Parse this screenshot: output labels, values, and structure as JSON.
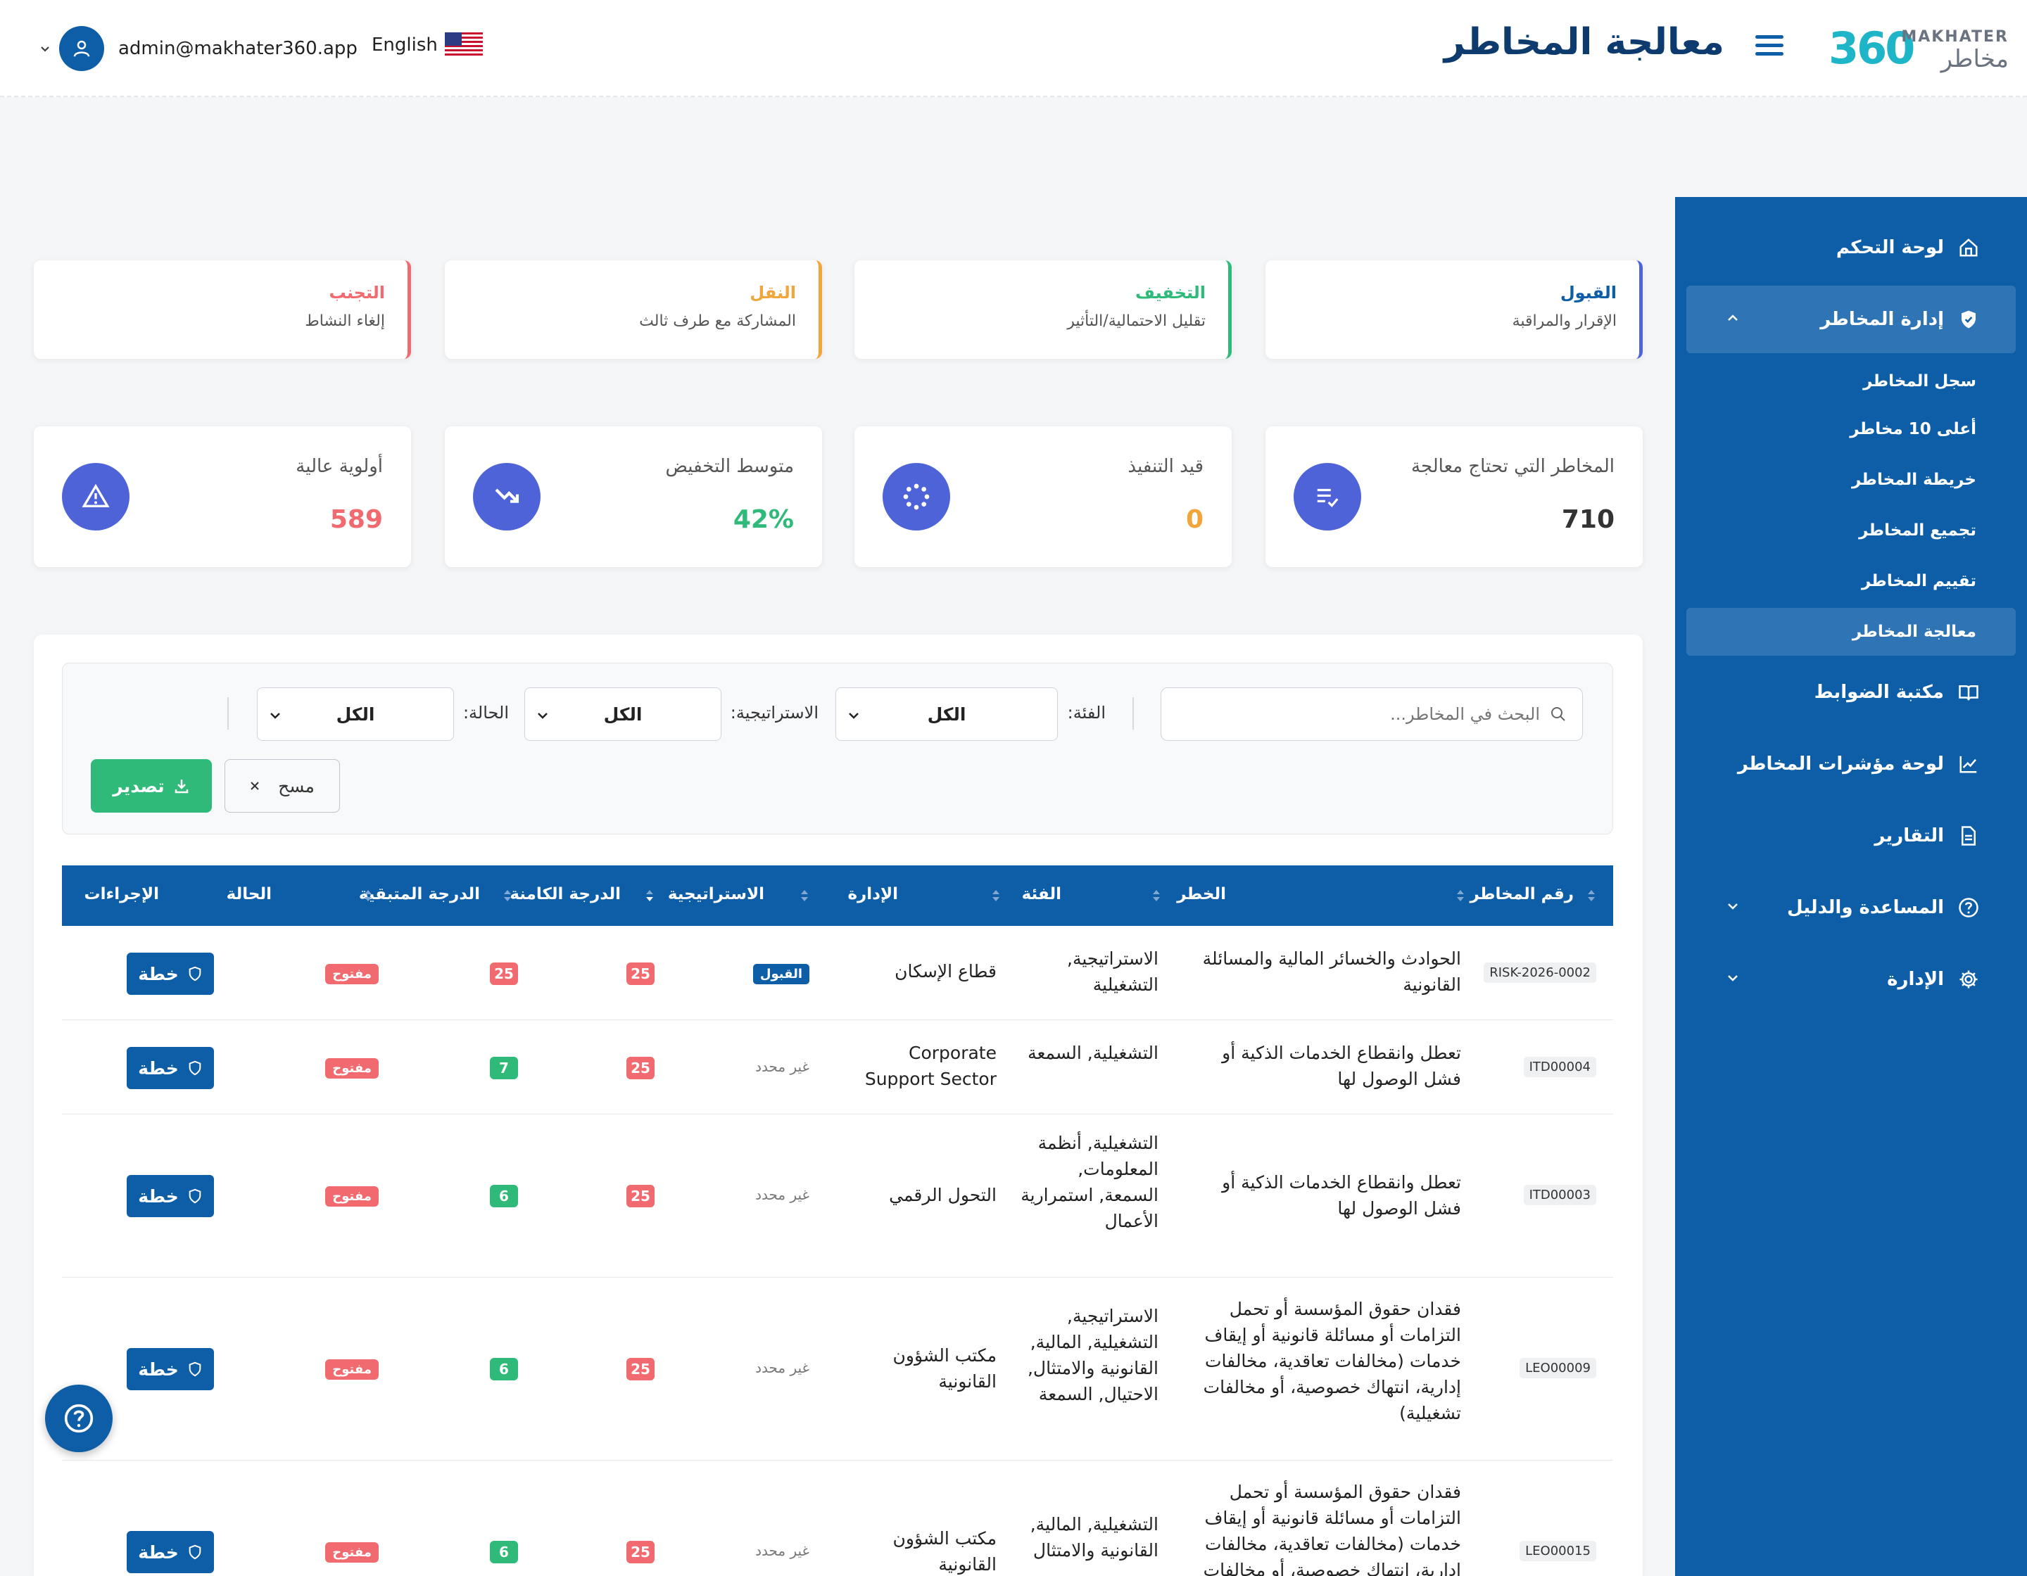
{
  "header": {
    "title": "معالجة المخاطر",
    "logo_number": "360",
    "logo_en": "MAKHATER",
    "logo_ar": "مخاطر",
    "language": "English",
    "user_email": "admin@makhater360.app"
  },
  "sidebar": {
    "items": [
      {
        "label": "لوحة التحكم",
        "icon": "home-icon"
      },
      {
        "label": "إدارة المخاطر",
        "icon": "shield-icon"
      },
      {
        "label": "مكتبة الضوابط",
        "icon": "book-icon"
      },
      {
        "label": "لوحة مؤشرات المخاطر",
        "icon": "chart-line-icon"
      },
      {
        "label": "التقارير",
        "icon": "document-icon"
      },
      {
        "label": "المساعدة والدليل",
        "icon": "help-circle-icon"
      },
      {
        "label": "الإدارة",
        "icon": "gear-icon"
      }
    ],
    "sub_items": [
      {
        "label": "سجل المخاطر"
      },
      {
        "label": "أعلى 10 مخاطر"
      },
      {
        "label": "خريطة المخاطر"
      },
      {
        "label": "تجميع المخاطر"
      },
      {
        "label": "تقييم المخاطر"
      },
      {
        "label": "معالجة المخاطر"
      }
    ]
  },
  "strategies": [
    {
      "title": "القبول",
      "subtitle": "الإقرار والمراقبة",
      "color": "#4e63d8"
    },
    {
      "title": "التخفيف",
      "subtitle": "تقليل الاحتمالية/التأثير",
      "color": "#2fba79"
    },
    {
      "title": "النقل",
      "subtitle": "المشاركة مع طرف ثالث",
      "color": "#f0a63a"
    },
    {
      "title": "التجنب",
      "subtitle": "إلغاء النشاط",
      "color": "#f16a6f"
    }
  ],
  "stats": [
    {
      "label": "المخاطر التي تحتاج معالجة",
      "value": "710",
      "color": "#333333",
      "icon": "list-check-icon"
    },
    {
      "label": "قيد التنفيذ",
      "value": "0",
      "color": "#f0a63a",
      "icon": "spinner-icon"
    },
    {
      "label": "متوسط التخفيض",
      "value": "42%",
      "color": "#2fba79",
      "icon": "trend-down-icon"
    },
    {
      "label": "أولوية عالية",
      "value": "589",
      "color": "#f16a6f",
      "icon": "warning-icon"
    }
  ],
  "filters": {
    "search_placeholder": "البحث في المخاطر...",
    "category_label": "الفئة:",
    "category_value": "الكل",
    "strategy_label": "الاستراتيجية:",
    "strategy_value": "الكل",
    "status_label": "الحالة:",
    "status_value": "الكل",
    "clear_label": "مسح",
    "export_label": "تصدير"
  },
  "table": {
    "headers": [
      "رقم المخاطر",
      "الخطر",
      "الفئة",
      "الإدارة",
      "الاستراتيجية",
      "الدرجة الكامنة",
      "الدرجة المتبقية",
      "الحالة",
      "الإجراءات"
    ],
    "rows": [
      {
        "id": "RISK-2026-0002",
        "risk": "الحوادث والخسائر المالية والمسائلة القانونية",
        "category": "الاستراتيجية, التشغيلية",
        "dept": "قطاع الإسكان",
        "strategy": "القبول",
        "inherent": "25",
        "residual": "25",
        "status": "مفتوح",
        "action": "خطة"
      },
      {
        "id": "ITD00004",
        "risk": "تعطل وانقطاع الخدمات الذكية أو فشل الوصول لها",
        "category": "التشغيلية, السمعة",
        "dept": "Corporate Support Sector",
        "strategy": "غير محدد",
        "inherent": "25",
        "residual": "7",
        "status": "مفتوح",
        "action": "خطة"
      },
      {
        "id": "ITD00003",
        "risk": "تعطل وانقطاع الخدمات الذكية أو فشل الوصول لها",
        "category": "التشغيلية, أنظمة المعلومات, السمعة, استمرارية الأعمال",
        "dept": "التحول الرقمي",
        "strategy": "غير محدد",
        "inherent": "25",
        "residual": "6",
        "status": "مفتوح",
        "action": "خطة"
      },
      {
        "id": "LEO00009",
        "risk": "فقدان حقوق المؤسسة أو تحمل التزامات أو مسائلة قانونية أو إيقاف خدمات (مخالفات تعاقدية، مخالفات إدارية، انتهاك خصوصية، أو مخالفات تشغيلية)",
        "category": "الاستراتيجية, التشغيلية, المالية, القانونية والامتثال, الاحتيال, السمعة",
        "dept": "مكتب الشؤون القانونية",
        "strategy": "غير محدد",
        "inherent": "25",
        "residual": "6",
        "status": "مفتوح",
        "action": "خطة"
      },
      {
        "id": "LEO00015",
        "risk": "فقدان حقوق المؤسسة أو تحمل التزامات أو مسائلة قانونية أو إيقاف خدمات (مخالفات تعاقدية، مخالفات إدارية، انتهاك خصوصية، أو مخالفات تشغيلية)",
        "category": "التشغيلية, المالية, القانونية والامتثال",
        "dept": "مكتب الشؤون القانونية",
        "strategy": "غير محدد",
        "inherent": "25",
        "residual": "6",
        "status": "مفتوح",
        "action": "خطة"
      }
    ]
  }
}
